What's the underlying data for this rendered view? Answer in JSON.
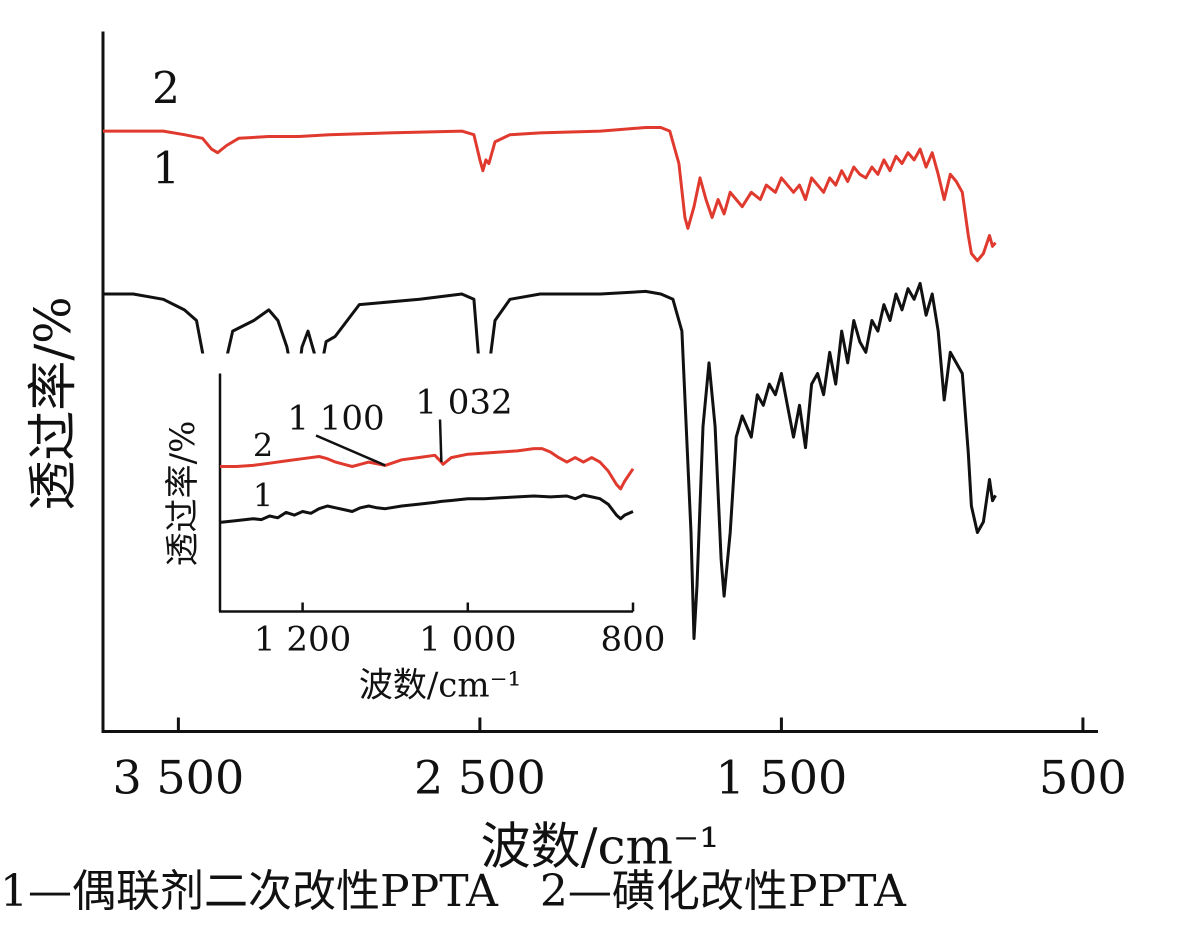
{
  "caption": {
    "item1": "1—偶联剂二次改性PPTA",
    "item2": "2—磺化改性PPTA"
  },
  "chart_data": [
    {
      "type": "line",
      "xlabel": "波数/cm⁻¹",
      "ylabel": "透过率/%",
      "x_reversed": true,
      "xlim": [
        3750,
        450
      ],
      "x_ticks": [
        3500,
        2500,
        1500,
        500
      ],
      "x_tick_labels": [
        "3 500",
        "2 500",
        "1 500",
        "500"
      ],
      "y_ticks_shown": false,
      "ylim": [
        0,
        100
      ],
      "colors": {
        "1": "#111111",
        "2": "#e03a2f"
      },
      "series": [
        {
          "name": "1",
          "label": "1",
          "color": "#111111",
          "points": [
            [
              3750,
              75
            ],
            [
              3650,
              75
            ],
            [
              3550,
              74
            ],
            [
              3480,
              72
            ],
            [
              3440,
              70
            ],
            [
              3400,
              58
            ],
            [
              3380,
              50
            ],
            [
              3360,
              58
            ],
            [
              3320,
              68
            ],
            [
              3250,
              70
            ],
            [
              3200,
              72
            ],
            [
              3170,
              70
            ],
            [
              3140,
              65
            ],
            [
              3110,
              56
            ],
            [
              3090,
              65
            ],
            [
              3070,
              68
            ],
            [
              3040,
              62
            ],
            [
              3030,
              60
            ],
            [
              3010,
              66
            ],
            [
              2980,
              67
            ],
            [
              2900,
              73
            ],
            [
              2700,
              74
            ],
            [
              2560,
              75
            ],
            [
              2520,
              74
            ],
            [
              2500,
              60
            ],
            [
              2490,
              55
            ],
            [
              2480,
              63
            ],
            [
              2470,
              61
            ],
            [
              2450,
              70
            ],
            [
              2400,
              74
            ],
            [
              2300,
              75
            ],
            [
              2100,
              75
            ],
            [
              1950,
              75.5
            ],
            [
              1900,
              75
            ],
            [
              1860,
              74
            ],
            [
              1830,
              68
            ],
            [
              1800,
              30
            ],
            [
              1790,
              10
            ],
            [
              1780,
              20
            ],
            [
              1760,
              50
            ],
            [
              1740,
              62
            ],
            [
              1720,
              50
            ],
            [
              1700,
              25
            ],
            [
              1690,
              18
            ],
            [
              1670,
              30
            ],
            [
              1650,
              48
            ],
            [
              1630,
              52
            ],
            [
              1600,
              48
            ],
            [
              1580,
              56
            ],
            [
              1560,
              54
            ],
            [
              1540,
              58
            ],
            [
              1520,
              56
            ],
            [
              1500,
              60
            ],
            [
              1480,
              54
            ],
            [
              1460,
              48
            ],
            [
              1440,
              54
            ],
            [
              1420,
              46
            ],
            [
              1400,
              58
            ],
            [
              1380,
              60
            ],
            [
              1360,
              56
            ],
            [
              1340,
              64
            ],
            [
              1320,
              58
            ],
            [
              1300,
              68
            ],
            [
              1280,
              62
            ],
            [
              1260,
              70
            ],
            [
              1240,
              66
            ],
            [
              1220,
              64
            ],
            [
              1200,
              70
            ],
            [
              1180,
              68
            ],
            [
              1160,
              73
            ],
            [
              1140,
              70
            ],
            [
              1120,
              75
            ],
            [
              1100,
              72
            ],
            [
              1080,
              76
            ],
            [
              1060,
              74
            ],
            [
              1040,
              77
            ],
            [
              1020,
              71
            ],
            [
              1000,
              75
            ],
            [
              980,
              68
            ],
            [
              960,
              55
            ],
            [
              940,
              64
            ],
            [
              920,
              62
            ],
            [
              900,
              60
            ],
            [
              880,
              45
            ],
            [
              870,
              35
            ],
            [
              850,
              30
            ],
            [
              830,
              32
            ],
            [
              810,
              40
            ],
            [
              800,
              36
            ],
            [
              790,
              37
            ]
          ]
        },
        {
          "name": "2",
          "label": "2",
          "color": "#e03a2f",
          "points": [
            [
              3750,
              89
            ],
            [
              3650,
              89
            ],
            [
              3550,
              89
            ],
            [
              3480,
              88
            ],
            [
              3420,
              87
            ],
            [
              3390,
              84
            ],
            [
              3370,
              83
            ],
            [
              3340,
              85
            ],
            [
              3300,
              87
            ],
            [
              3200,
              87.5
            ],
            [
              3100,
              87.5
            ],
            [
              3000,
              88
            ],
            [
              2800,
              88.5
            ],
            [
              2560,
              89
            ],
            [
              2520,
              88
            ],
            [
              2500,
              81
            ],
            [
              2490,
              78
            ],
            [
              2480,
              81
            ],
            [
              2470,
              80
            ],
            [
              2450,
              86
            ],
            [
              2400,
              88
            ],
            [
              2300,
              88.5
            ],
            [
              2100,
              89
            ],
            [
              1950,
              90
            ],
            [
              1900,
              90
            ],
            [
              1870,
              89
            ],
            [
              1840,
              80
            ],
            [
              1820,
              65
            ],
            [
              1810,
              62
            ],
            [
              1790,
              68
            ],
            [
              1770,
              76
            ],
            [
              1750,
              70
            ],
            [
              1730,
              65
            ],
            [
              1710,
              70
            ],
            [
              1690,
              66
            ],
            [
              1670,
              72
            ],
            [
              1650,
              70
            ],
            [
              1630,
              68
            ],
            [
              1600,
              72
            ],
            [
              1570,
              70
            ],
            [
              1550,
              74
            ],
            [
              1520,
              72
            ],
            [
              1500,
              76
            ],
            [
              1480,
              74
            ],
            [
              1460,
              72
            ],
            [
              1440,
              74
            ],
            [
              1420,
              70
            ],
            [
              1400,
              76
            ],
            [
              1380,
              74
            ],
            [
              1360,
              72
            ],
            [
              1340,
              76
            ],
            [
              1320,
              74
            ],
            [
              1300,
              78
            ],
            [
              1280,
              75
            ],
            [
              1260,
              79
            ],
            [
              1240,
              77
            ],
            [
              1220,
              76
            ],
            [
              1200,
              79
            ],
            [
              1180,
              77
            ],
            [
              1160,
              81
            ],
            [
              1140,
              78
            ],
            [
              1120,
              82
            ],
            [
              1100,
              80
            ],
            [
              1080,
              83
            ],
            [
              1060,
              81
            ],
            [
              1040,
              84
            ],
            [
              1020,
              79
            ],
            [
              1000,
              83
            ],
            [
              980,
              77
            ],
            [
              960,
              70
            ],
            [
              940,
              77
            ],
            [
              920,
              75
            ],
            [
              900,
              72
            ],
            [
              880,
              60
            ],
            [
              870,
              55
            ],
            [
              850,
              53
            ],
            [
              830,
              55
            ],
            [
              810,
              60
            ],
            [
              800,
              57
            ],
            [
              790,
              58
            ]
          ]
        }
      ]
    },
    {
      "type": "line",
      "inset": true,
      "xlabel": "波数/cm⁻¹",
      "ylabel": "透过率/%",
      "x_reversed": true,
      "xlim": [
        1300,
        800
      ],
      "x_ticks": [
        1200,
        1000,
        800
      ],
      "x_tick_labels": [
        "1 200",
        "1 000",
        "800"
      ],
      "y_ticks_shown": false,
      "ylim": [
        0,
        100
      ],
      "annotations": [
        {
          "text": "1 100",
          "x": 1100,
          "series": "2"
        },
        {
          "text": "1 032",
          "x": 1032,
          "series": "2"
        }
      ],
      "series": [
        {
          "name": "1",
          "label": "1",
          "color": "#111111",
          "points": [
            [
              1300,
              32
            ],
            [
              1280,
              34
            ],
            [
              1260,
              36
            ],
            [
              1250,
              35
            ],
            [
              1240,
              39
            ],
            [
              1230,
              37
            ],
            [
              1220,
              43
            ],
            [
              1210,
              40
            ],
            [
              1200,
              44
            ],
            [
              1190,
              42
            ],
            [
              1180,
              47
            ],
            [
              1170,
              50
            ],
            [
              1160,
              48
            ],
            [
              1150,
              46
            ],
            [
              1140,
              44
            ],
            [
              1130,
              48
            ],
            [
              1120,
              50
            ],
            [
              1110,
              48
            ],
            [
              1100,
              47
            ],
            [
              1080,
              50
            ],
            [
              1060,
              52
            ],
            [
              1040,
              54
            ],
            [
              1032,
              55
            ],
            [
              1020,
              56
            ],
            [
              1000,
              58
            ],
            [
              980,
              58
            ],
            [
              960,
              59
            ],
            [
              940,
              60
            ],
            [
              920,
              61
            ],
            [
              900,
              60
            ],
            [
              880,
              61
            ],
            [
              870,
              58
            ],
            [
              860,
              62
            ],
            [
              850,
              60
            ],
            [
              840,
              58
            ],
            [
              830,
              52
            ],
            [
              820,
              40
            ],
            [
              815,
              36
            ],
            [
              810,
              40
            ],
            [
              800,
              44
            ]
          ]
        },
        {
          "name": "2",
          "label": "2",
          "color": "#e03a2f",
          "points": [
            [
              1300,
              58
            ],
            [
              1280,
              58
            ],
            [
              1260,
              59
            ],
            [
              1240,
              61
            ],
            [
              1220,
              63
            ],
            [
              1200,
              65
            ],
            [
              1180,
              67
            ],
            [
              1170,
              65
            ],
            [
              1160,
              62
            ],
            [
              1150,
              60
            ],
            [
              1140,
              58
            ],
            [
              1130,
              60
            ],
            [
              1120,
              62
            ],
            [
              1100,
              59
            ],
            [
              1080,
              64
            ],
            [
              1060,
              66
            ],
            [
              1040,
              68
            ],
            [
              1032,
              62
            ],
            [
              1030,
              60
            ],
            [
              1020,
              66
            ],
            [
              1000,
              69
            ],
            [
              980,
              70
            ],
            [
              960,
              71
            ],
            [
              940,
              72
            ],
            [
              920,
              74
            ],
            [
              910,
              74
            ],
            [
              900,
              71
            ],
            [
              890,
              66
            ],
            [
              880,
              62
            ],
            [
              870,
              66
            ],
            [
              860,
              62
            ],
            [
              850,
              66
            ],
            [
              840,
              62
            ],
            [
              830,
              54
            ],
            [
              820,
              42
            ],
            [
              815,
              38
            ],
            [
              810,
              45
            ],
            [
              800,
              56
            ]
          ]
        }
      ]
    }
  ]
}
